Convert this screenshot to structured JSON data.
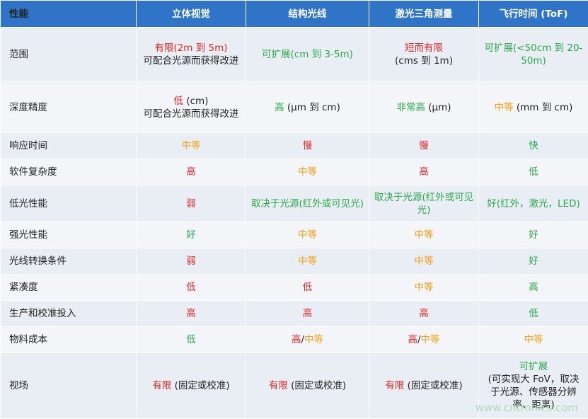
{
  "table": {
    "header": [
      "性能",
      "立体视觉",
      "结构光线",
      "激光三角测量",
      "飞行时间 (ToF)"
    ],
    "rows": [
      {
        "label": "范围",
        "cells": [
          [
            [
              {
                "text": "有限(2m 到 5m)",
                "tone": "red"
              }
            ],
            [
              {
                "text": "可配合光源而获得改进",
                "tone": "black"
              }
            ]
          ],
          [
            [
              {
                "text": "可扩展(cm 到 3-5m)",
                "tone": "green"
              }
            ]
          ],
          [
            [
              {
                "text": "短而有限",
                "tone": "red"
              }
            ],
            [
              {
                "text": "(cms 到 1m)",
                "tone": "black"
              }
            ]
          ],
          [
            [
              {
                "text": "可扩展(<50cm 到 20-50m)",
                "tone": "green"
              }
            ]
          ]
        ]
      },
      {
        "label": "深度精度",
        "cells": [
          [
            [
              {
                "text": "低",
                "tone": "red"
              },
              {
                "text": " (cm)",
                "tone": "black"
              }
            ],
            [
              {
                "text": "可配合光源而获得改进",
                "tone": "black"
              }
            ]
          ],
          [
            [
              {
                "text": "高",
                "tone": "green"
              },
              {
                "text": " (μm 到 cm)",
                "tone": "black"
              }
            ]
          ],
          [
            [
              {
                "text": "非常高",
                "tone": "green"
              },
              {
                "text": " (μm)",
                "tone": "black"
              }
            ]
          ],
          [
            [
              {
                "text": "中等",
                "tone": "orange"
              },
              {
                "text": " (mm 到 cm)",
                "tone": "black"
              }
            ]
          ]
        ]
      },
      {
        "label": "响应时间",
        "cells": [
          [
            [
              {
                "text": "中等",
                "tone": "orange"
              }
            ]
          ],
          [
            [
              {
                "text": "慢",
                "tone": "red"
              }
            ]
          ],
          [
            [
              {
                "text": "慢",
                "tone": "red"
              }
            ]
          ],
          [
            [
              {
                "text": "快",
                "tone": "green"
              }
            ]
          ]
        ]
      },
      {
        "label": "软件复杂度",
        "cells": [
          [
            [
              {
                "text": "高",
                "tone": "red"
              }
            ]
          ],
          [
            [
              {
                "text": "中等",
                "tone": "orange"
              }
            ]
          ],
          [
            [
              {
                "text": "高",
                "tone": "red"
              }
            ]
          ],
          [
            [
              {
                "text": "低",
                "tone": "green"
              }
            ]
          ]
        ]
      },
      {
        "label": "低光性能",
        "cells": [
          [
            [
              {
                "text": "弱",
                "tone": "red"
              }
            ]
          ],
          [
            [
              {
                "text": "取决于光源(红外或可见光)",
                "tone": "green"
              }
            ]
          ],
          [
            [
              {
                "text": "取决于光源(红外或可见光)",
                "tone": "green"
              }
            ]
          ],
          [
            [
              {
                "text": "好(红外，激光，LED)",
                "tone": "green"
              }
            ]
          ]
        ]
      },
      {
        "label": "强光性能",
        "cells": [
          [
            [
              {
                "text": "好",
                "tone": "green"
              }
            ]
          ],
          [
            [
              {
                "text": "中等",
                "tone": "orange"
              }
            ]
          ],
          [
            [
              {
                "text": "中等",
                "tone": "orange"
              }
            ]
          ],
          [
            [
              {
                "text": "好",
                "tone": "green"
              }
            ]
          ]
        ]
      },
      {
        "label": "光线转换条件",
        "cells": [
          [
            [
              {
                "text": "弱",
                "tone": "red"
              }
            ]
          ],
          [
            [
              {
                "text": "中等",
                "tone": "orange"
              }
            ]
          ],
          [
            [
              {
                "text": "中等",
                "tone": "orange"
              }
            ]
          ],
          [
            [
              {
                "text": "好",
                "tone": "green"
              }
            ]
          ]
        ]
      },
      {
        "label": "紧凑度",
        "cells": [
          [
            [
              {
                "text": "低",
                "tone": "red"
              }
            ]
          ],
          [
            [
              {
                "text": "低",
                "tone": "red"
              }
            ]
          ],
          [
            [
              {
                "text": "中等",
                "tone": "orange"
              }
            ]
          ],
          [
            [
              {
                "text": "高",
                "tone": "green"
              }
            ]
          ]
        ]
      },
      {
        "label": "生产和校准投入",
        "cells": [
          [
            [
              {
                "text": "高",
                "tone": "red"
              }
            ]
          ],
          [
            [
              {
                "text": "高",
                "tone": "red"
              }
            ]
          ],
          [
            [
              {
                "text": "高",
                "tone": "red"
              }
            ]
          ],
          [
            [
              {
                "text": "低",
                "tone": "green"
              }
            ]
          ]
        ]
      },
      {
        "label": "物料成本",
        "cells": [
          [
            [
              {
                "text": "低",
                "tone": "green"
              }
            ]
          ],
          [
            [
              {
                "text": "高",
                "tone": "red"
              },
              {
                "text": "/",
                "tone": "black"
              },
              {
                "text": "中等",
                "tone": "orange"
              }
            ]
          ],
          [
            [
              {
                "text": "高",
                "tone": "red"
              },
              {
                "text": "/",
                "tone": "black"
              },
              {
                "text": "中等",
                "tone": "orange"
              }
            ]
          ],
          [
            [
              {
                "text": "中等",
                "tone": "orange"
              }
            ]
          ]
        ]
      },
      {
        "label": "视场",
        "cells": [
          [
            [
              {
                "text": "有限",
                "tone": "red"
              },
              {
                "text": " (固定或校准)",
                "tone": "black"
              }
            ]
          ],
          [
            [
              {
                "text": "有限",
                "tone": "red"
              },
              {
                "text": " (固定或校准)",
                "tone": "black"
              }
            ]
          ],
          [
            [
              {
                "text": "有限",
                "tone": "red"
              },
              {
                "text": " (固定或校准)",
                "tone": "black"
              }
            ]
          ],
          [
            [
              {
                "text": "可扩展",
                "tone": "green"
              }
            ],
            [
              {
                "text": "(可实现大 FoV，取决于光源、传感器分辨率、距离)",
                "tone": "black"
              }
            ]
          ]
        ]
      }
    ]
  },
  "watermark": "www.cntronics.com"
}
